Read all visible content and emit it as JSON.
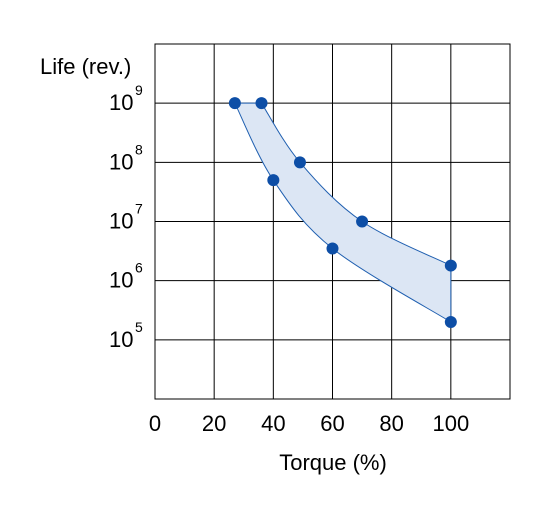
{
  "chart_data": {
    "type": "scatter",
    "xlabel": "Torque (%)",
    "ylabel": "Life (rev.)",
    "xlim": [
      0,
      120
    ],
    "ylim_log10": [
      4,
      10
    ],
    "y_scale": "log",
    "grid": true,
    "x_ticks": [
      {
        "value": 0,
        "label": "0"
      },
      {
        "value": 20,
        "label": "20"
      },
      {
        "value": 40,
        "label": "40"
      },
      {
        "value": 60,
        "label": "60"
      },
      {
        "value": 80,
        "label": "80"
      },
      {
        "value": 100,
        "label": "100"
      }
    ],
    "y_ticks": [
      {
        "value": 100000,
        "base": "10",
        "exp": "5"
      },
      {
        "value": 1000000,
        "base": "10",
        "exp": "6"
      },
      {
        "value": 10000000,
        "base": "10",
        "exp": "7"
      },
      {
        "value": 100000000,
        "base": "10",
        "exp": "8"
      },
      {
        "value": 1000000000,
        "base": "10",
        "exp": "9"
      }
    ],
    "series": [
      {
        "x": [
          36,
          49,
          70,
          100
        ],
        "y": [
          1000000000,
          100000000,
          10000000,
          1800000
        ]
      },
      {
        "x": [
          27,
          40,
          60,
          100
        ],
        "y": [
          1000000000,
          50000000,
          3500000,
          200000
        ]
      }
    ],
    "colors": {
      "points": "#0d4ea6",
      "band_fill": "#dce6f4",
      "band_stroke": "#1f5fb0",
      "grid": "#000000"
    }
  }
}
